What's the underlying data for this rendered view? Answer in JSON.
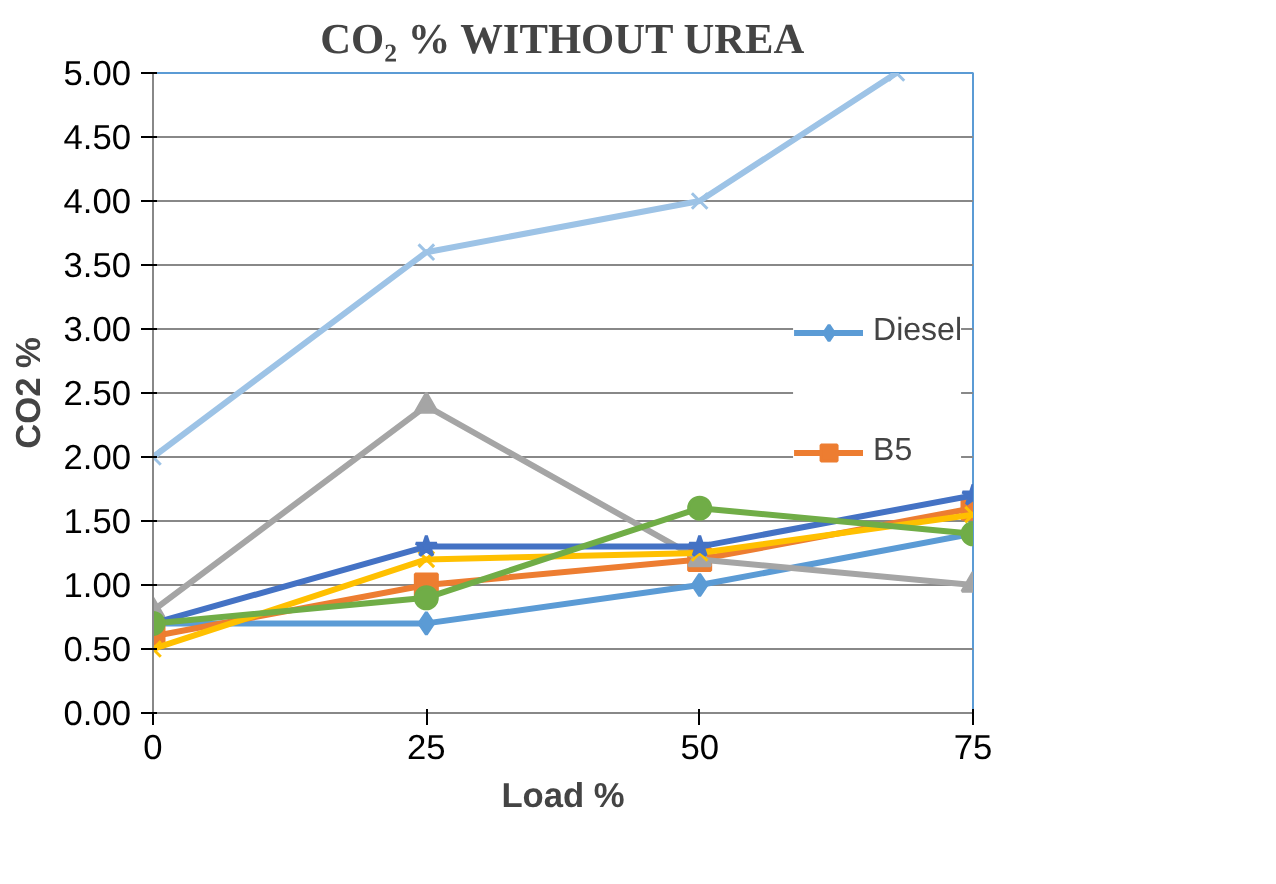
{
  "chart_data": {
    "type": "line",
    "title": "CO₂ % WITHOUT UREA",
    "xlabel": "Load %",
    "ylabel": "CO2 %",
    "x": [
      0,
      25,
      50,
      75
    ],
    "series": [
      {
        "name": "Diesel",
        "color": "#5b9bd5",
        "marker": "diamond",
        "values": [
          0.7,
          0.7,
          1.0,
          1.4
        ]
      },
      {
        "name": "B5",
        "color": "#ed7d31",
        "marker": "square",
        "values": [
          0.6,
          1.0,
          1.2,
          1.6
        ]
      },
      {
        "color": "#a5a5a5",
        "marker": "triangle",
        "values": [
          0.8,
          2.4,
          1.2,
          1.0
        ]
      },
      {
        "color": "#ffc000",
        "marker": "cross",
        "values": [
          0.5,
          1.2,
          1.25,
          1.55
        ]
      },
      {
        "color": "#4472c4",
        "marker": "star",
        "values": [
          0.7,
          1.3,
          1.3,
          1.7
        ]
      },
      {
        "color": "#70ad47",
        "marker": "circle",
        "values": [
          0.7,
          0.9,
          1.6,
          1.4
        ]
      },
      {
        "color": "#9dc3e6",
        "marker": "cross",
        "x": [
          0,
          25,
          50,
          68
        ],
        "values": [
          2.0,
          3.6,
          4.0,
          5.0
        ]
      }
    ],
    "xlim": [
      0,
      75
    ],
    "xticks": [
      0,
      25,
      50,
      75
    ],
    "ylim": [
      0,
      5
    ],
    "yticks": [
      {
        "value": 0,
        "label": "0.00"
      },
      {
        "value": 0.5,
        "label": "0.50"
      },
      {
        "value": 1,
        "label": "1.00"
      },
      {
        "value": 1.5,
        "label": "1.50"
      },
      {
        "value": 2,
        "label": "2.00"
      },
      {
        "value": 2.5,
        "label": "2.50"
      },
      {
        "value": 3,
        "label": "3.00"
      },
      {
        "value": 3.5,
        "label": "3.50"
      },
      {
        "value": 4,
        "label": "4.00"
      },
      {
        "value": 4.5,
        "label": "4.50"
      },
      {
        "value": 5,
        "label": "5.00"
      }
    ],
    "grid": "y",
    "legend": "right",
    "line_style": "solid"
  }
}
